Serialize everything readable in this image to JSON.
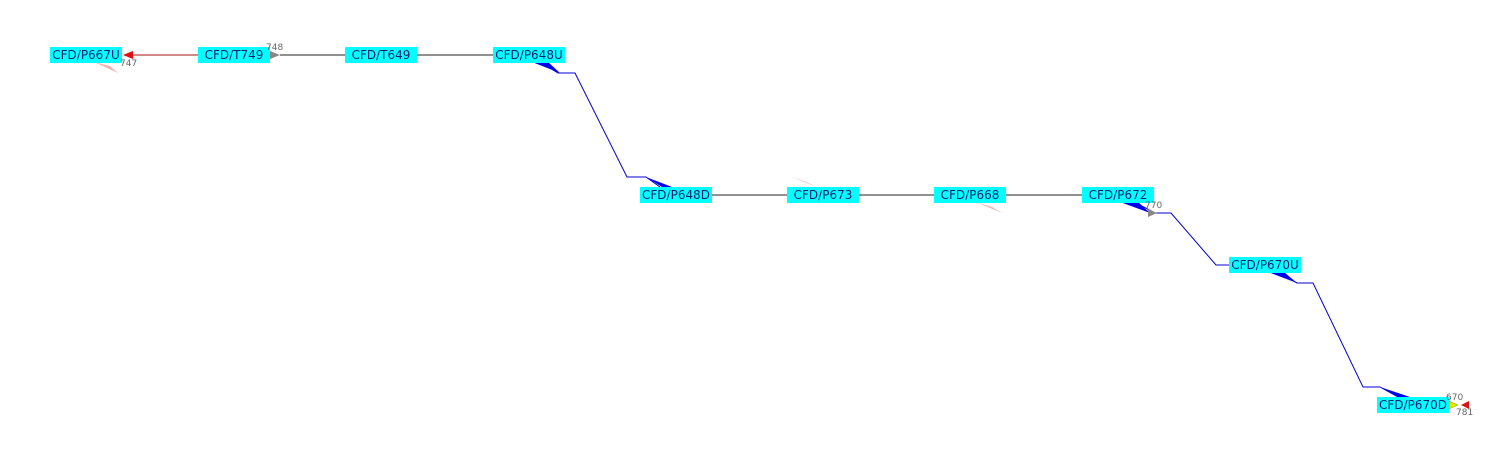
{
  "colors": {
    "node_fill": "#00ffff",
    "node_text": "#0b1f6e",
    "link_blue": "#0000cc",
    "link_dark": "#222222",
    "wedge_blue": "#0000ee",
    "wedge_pink": "#f2b3b3",
    "arrow_red": "#dd1111",
    "arrow_gray": "#888888",
    "arrow_yellow": "#e6e600",
    "num_text": "#666666"
  },
  "nodes": [
    {
      "id": "p667u",
      "label": "CFD/P667U"
    },
    {
      "id": "t749",
      "label": "CFD/T749"
    },
    {
      "id": "t649",
      "label": "CFD/T649"
    },
    {
      "id": "p648u",
      "label": "CFD/P648U"
    },
    {
      "id": "p648d",
      "label": "CFD/P648D"
    },
    {
      "id": "p673",
      "label": "CFD/P673"
    },
    {
      "id": "p668",
      "label": "CFD/P668"
    },
    {
      "id": "p672",
      "label": "CFD/P672"
    },
    {
      "id": "p670u",
      "label": "CFD/P670U"
    },
    {
      "id": "p670d",
      "label": "CFD/P670D"
    }
  ],
  "port_numbers": {
    "n747": "747",
    "n748": "748",
    "n770": "770",
    "n670": "670",
    "n781": "781"
  }
}
